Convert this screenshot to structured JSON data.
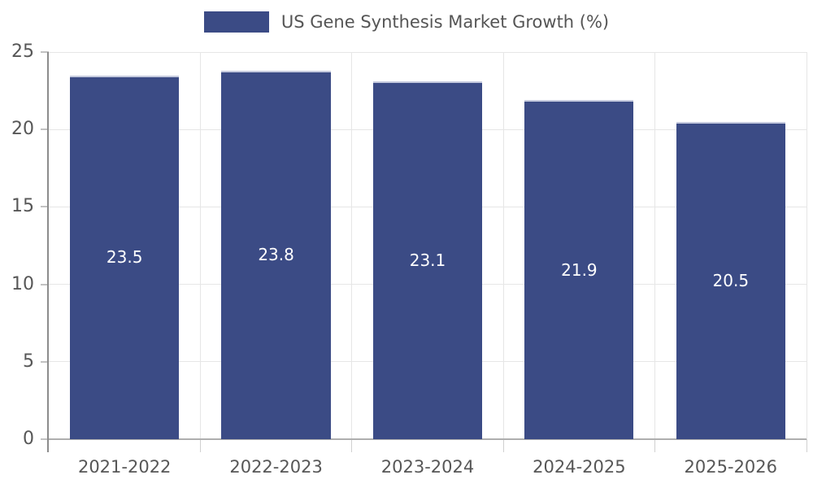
{
  "chart_data": {
    "type": "bar",
    "title": "US Gene Synthesis Market Growth (%)",
    "categories": [
      "2021-2022",
      "2022-2023",
      "2023-2024",
      "2024-2025",
      "2025-2026"
    ],
    "values": [
      23.5,
      23.8,
      23.1,
      21.9,
      20.5
    ],
    "value_labels": [
      "23.5",
      "23.8",
      "23.1",
      "21.9",
      "20.5"
    ],
    "xlabel": "",
    "ylabel": "",
    "ylim": [
      0,
      25
    ],
    "yticks": [
      0,
      5,
      10,
      15,
      20,
      25
    ],
    "grid": true,
    "legend_position": "top-center",
    "colors": {
      "bar": "#3b4b85",
      "bar_top_edge": "#c5cade",
      "value_label": "#ffffff",
      "tick_text": "#575757",
      "legend_text": "#555555",
      "gridline": "#e6e6e6",
      "y_axis_line": "#8c8c8c",
      "baseline": "#aeaeae",
      "background": "#ffffff"
    }
  }
}
